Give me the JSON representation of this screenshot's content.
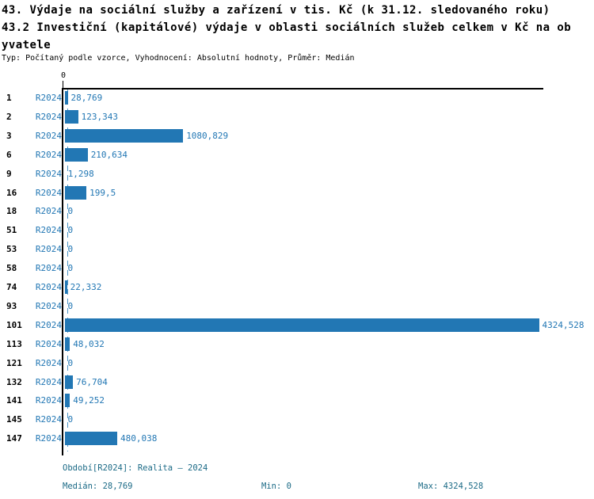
{
  "header": {
    "title_line1": "43. Výdaje na sociální služby a zařízení v tis. Kč (k 31.12. sledovaného roku)",
    "title_line2": "43.2 Investiční (kapitálové) výdaje v oblasti sociálních služeb celkem v Kč na ob",
    "title_line3": "yvatele",
    "subtitle": "Typ: Počítaný podle vzorce, Vyhodnocení: Absolutní hodnoty, Průměr: Medián"
  },
  "chart_data": {
    "type": "bar",
    "orientation": "horizontal",
    "title": "43. Výdaje na sociální služby a zařízení v tis. Kč (k 31.12. sledovaného roku) 43.2 Investiční (kapitálové) výdaje v oblasti sociálních služeb celkem v Kč na obyvatele",
    "series_label": "R2024",
    "axis_zero_label": "0",
    "xlim": [
      0,
      4365
    ],
    "grid": false,
    "legend_position": "none",
    "categories": [
      "1",
      "2",
      "3",
      "6",
      "9",
      "16",
      "18",
      "51",
      "53",
      "58",
      "74",
      "93",
      "101",
      "113",
      "121",
      "132",
      "141",
      "145",
      "147"
    ],
    "values": [
      28.769,
      123.343,
      1080.829,
      210.634,
      1.298,
      199.5,
      0,
      0,
      0,
      0,
      22.332,
      0,
      4324.528,
      48.032,
      0,
      76.704,
      49.252,
      0,
      480.038
    ],
    "value_labels": [
      "28,769",
      "123,343",
      "1080,829",
      "210,634",
      "1,298",
      "199,5",
      "0",
      "0",
      "0",
      "0",
      "22,332",
      "0",
      "4324,528",
      "48,032",
      "0",
      "76,704",
      "49,252",
      "0",
      "480,038"
    ],
    "median": 28.769,
    "min": 0,
    "max": 4324.528
  },
  "colors": {
    "bar_blue": "#2277b4",
    "label_blue": "#2277b4",
    "median_dash_blue": "#4d94c6",
    "footer_teal": "#1b6a86",
    "axis_black": "#000000"
  },
  "footer": {
    "period": "Období[R2024]: Realita – 2024",
    "median": "Medián: 28,769",
    "min": "Min: 0",
    "max": "Max: 4324,528"
  }
}
